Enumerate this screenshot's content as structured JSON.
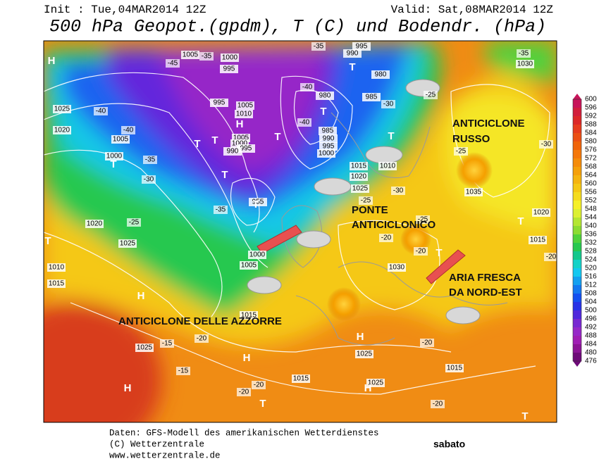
{
  "header": {
    "init": "Init : Tue,04MAR2014 12Z",
    "valid": "Valid: Sat,08MAR2014 12Z",
    "title": "500 hPa Geopot.(gpdm), T (C) und Bodendr. (hPa)"
  },
  "annotations": [
    {
      "lines": [
        "ANTICICLONE",
        "RUSSO"
      ]
    },
    {
      "lines": [
        "PONTE",
        "ANTICICLONICO"
      ]
    },
    {
      "lines": [
        "ARIA FRESCA",
        "DA NORD-EST"
      ]
    },
    {
      "lines": [
        "ANTICICLONE DELLE AZZORRE"
      ]
    }
  ],
  "isobar_labels": [
    1005,
    1000,
    995,
    995,
    1005,
    1010,
    1005,
    1000,
    995,
    990,
    1025,
    1020,
    1005,
    1000,
    1020,
    1025,
    1010,
    1015,
    1025,
    1015,
    1000,
    1005,
    995,
    990,
    980,
    985,
    980,
    985,
    990,
    995,
    1000,
    1015,
    1010,
    1020,
    1025,
    1035,
    1030,
    1020,
    1015,
    1030,
    1025,
    1015,
    1015,
    1025,
    955
  ],
  "temperature_labels": [
    -35,
    -45,
    -40,
    -40,
    -35,
    -30,
    -25,
    -35,
    -40,
    -40,
    -30,
    -35,
    -25,
    -25,
    -30,
    -30,
    -25,
    -20,
    -25,
    -20,
    -15,
    -20,
    -15,
    -20,
    -20,
    -20,
    -20,
    -20,
    -35
  ],
  "pressure_centers": [
    "H",
    "T",
    "T",
    "T",
    "T",
    "T",
    "T",
    "H",
    "T",
    "H",
    "H",
    "H",
    "H",
    "T",
    "H",
    "T",
    "T",
    "T",
    "T",
    "T",
    "T"
  ],
  "colorbar": {
    "labels": [
      600,
      596,
      592,
      588,
      584,
      580,
      576,
      572,
      568,
      564,
      560,
      556,
      552,
      548,
      544,
      540,
      536,
      532,
      528,
      524,
      520,
      516,
      512,
      508,
      504,
      500,
      496,
      492,
      488,
      484,
      480,
      476
    ],
    "colors": [
      "#c8145a",
      "#d21e3c",
      "#dc2828",
      "#e63c1e",
      "#eb5014",
      "#f0640a",
      "#f5780a",
      "#f58c0a",
      "#f5a00a",
      "#f5b40f",
      "#f5c814",
      "#f5dc1e",
      "#f5f028",
      "#dcf032",
      "#b4e632",
      "#8cdc32",
      "#50d23c",
      "#28c850",
      "#14c88c",
      "#14d2c8",
      "#14c8f0",
      "#14a0f0",
      "#1478f0",
      "#1450f0",
      "#2832e6",
      "#5028dc",
      "#7828d2",
      "#9628c8",
      "#a01eb4",
      "#8c1496",
      "#6e0a78"
    ]
  },
  "footer": {
    "source": "Daten: GFS-Modell des amerikanischen Wetterdienstes",
    "copyright": "(C) Wetterzentrale",
    "url": "www.wetterzentrale.de",
    "day": "sabato"
  }
}
